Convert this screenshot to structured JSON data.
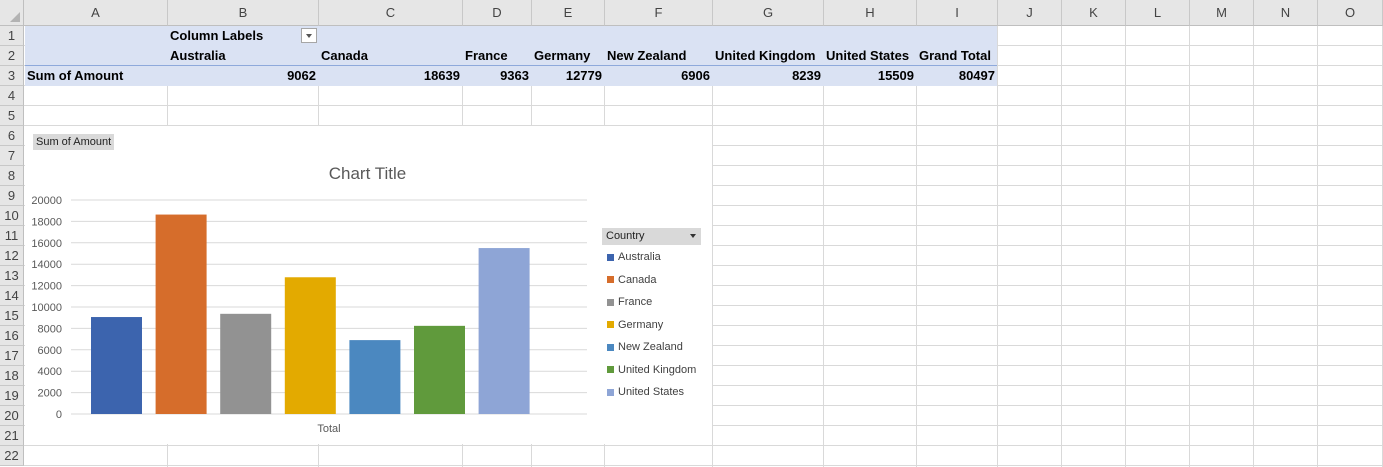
{
  "columns": [
    "A",
    "B",
    "C",
    "D",
    "E",
    "F",
    "G",
    "H",
    "I",
    "J",
    "K",
    "L",
    "M",
    "N",
    "O"
  ],
  "rows": [
    "1",
    "2",
    "3",
    "4",
    "5",
    "6",
    "7",
    "8",
    "9",
    "10",
    "11",
    "12",
    "13",
    "14",
    "15",
    "16",
    "17",
    "18",
    "19",
    "20",
    "21",
    "22"
  ],
  "pivot": {
    "column_labels": "Column Labels",
    "row_label": "Sum of Amount",
    "headers": [
      "Australia",
      "Canada",
      "France",
      "Germany",
      "New Zealand",
      "United Kingdom",
      "United States",
      "Grand Total"
    ],
    "values": [
      "9062",
      "18639",
      "9363",
      "12779",
      "6906",
      "8239",
      "15509",
      "80497"
    ]
  },
  "chart": {
    "field_button": "Sum of Amount",
    "title": "Chart Title",
    "legend_title": "Country"
  },
  "colors": {
    "pivot_fill": "#dae2f3",
    "Australia": "#3c64ae",
    "Canada": "#d66d2b",
    "France": "#929292",
    "Germany": "#e3aa00",
    "New Zealand": "#4b88c0",
    "United Kingdom": "#609a3c",
    "United States": "#8ea5d6"
  },
  "chart_data": {
    "type": "bar",
    "title": "Chart Title",
    "categories": [
      "Total"
    ],
    "series": [
      {
        "name": "Australia",
        "values": [
          9062
        ]
      },
      {
        "name": "Canada",
        "values": [
          18639
        ]
      },
      {
        "name": "France",
        "values": [
          9363
        ]
      },
      {
        "name": "Germany",
        "values": [
          12779
        ]
      },
      {
        "name": "New Zealand",
        "values": [
          6906
        ]
      },
      {
        "name": "United Kingdom",
        "values": [
          8239
        ]
      },
      {
        "name": "United States",
        "values": [
          15509
        ]
      }
    ],
    "yticks": [
      "0",
      "2000",
      "4000",
      "6000",
      "8000",
      "10000",
      "12000",
      "14000",
      "16000",
      "18000",
      "20000"
    ],
    "ylim": [
      0,
      20000
    ],
    "grid": true,
    "legend_position": "right"
  }
}
